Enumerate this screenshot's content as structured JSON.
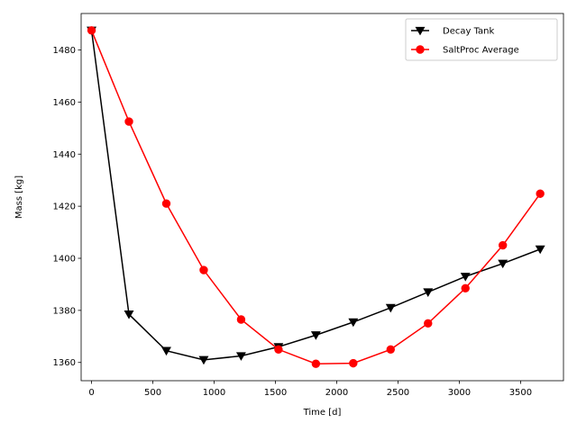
{
  "chart_data": {
    "type": "line",
    "xlabel": "Time [d]",
    "ylabel": "Mass [kg]",
    "xlim": [
      -85,
      3850
    ],
    "ylim": [
      1353,
      1494
    ],
    "xticks": [
      0,
      500,
      1000,
      1500,
      2000,
      2500,
      3000,
      3500
    ],
    "yticks": [
      1360,
      1380,
      1400,
      1420,
      1440,
      1460,
      1480
    ],
    "grid": false,
    "legend_position": "top-right",
    "series": [
      {
        "name": "Decay Tank",
        "color": "#000000",
        "marker": "triangle-down",
        "x": [
          0,
          305,
          610,
          915,
          1220,
          1525,
          1830,
          2135,
          2440,
          2745,
          3050,
          3355,
          3660
        ],
        "y": [
          1487.5,
          1378.5,
          1364.5,
          1361.0,
          1362.5,
          1366.0,
          1370.5,
          1375.5,
          1381.0,
          1387.0,
          1393.0,
          1398.0,
          1403.5
        ]
      },
      {
        "name": "SaltProc Average",
        "color": "#ff0000",
        "marker": "circle",
        "x": [
          0,
          305,
          610,
          915,
          1220,
          1525,
          1830,
          2135,
          2440,
          2745,
          3050,
          3355,
          3660
        ],
        "y": [
          1487.5,
          1452.5,
          1421.0,
          1395.5,
          1376.5,
          1365.0,
          1359.5,
          1359.7,
          1365.0,
          1375.0,
          1388.5,
          1405.0,
          1424.8
        ]
      }
    ]
  }
}
